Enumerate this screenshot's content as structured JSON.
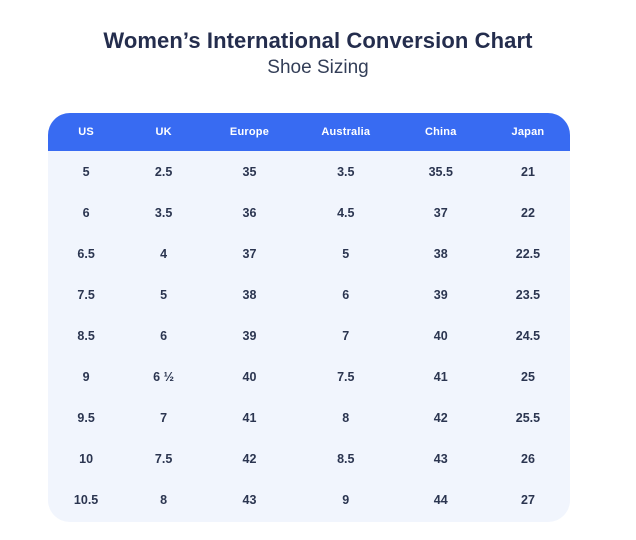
{
  "title": {
    "text": "Women’s International Conversion Chart",
    "subtitle": "Shoe Sizing"
  },
  "colors": {
    "header_background": "#386bf2",
    "header_text": "#ffffff",
    "body_background": "#f1f5fd",
    "cell_text": "#2b3550",
    "title_text": "#242d4d",
    "page_background": "#ffffff"
  },
  "table": {
    "columns": [
      "US",
      "UK",
      "Europe",
      "Australia",
      "China",
      "Japan"
    ],
    "rows": [
      [
        "5",
        "2.5",
        "35",
        "3.5",
        "35.5",
        "21"
      ],
      [
        "6",
        "3.5",
        "36",
        "4.5",
        "37",
        "22"
      ],
      [
        "6.5",
        "4",
        "37",
        "5",
        "38",
        "22.5"
      ],
      [
        "7.5",
        "5",
        "38",
        "6",
        "39",
        "23.5"
      ],
      [
        "8.5",
        "6",
        "39",
        "7",
        "40",
        "24.5"
      ],
      [
        "9",
        "6 ½",
        "40",
        "7.5",
        "41",
        "25"
      ],
      [
        "9.5",
        "7",
        "41",
        "8",
        "42",
        "25.5"
      ],
      [
        "10",
        "7.5",
        "42",
        "8.5",
        "43",
        "26"
      ],
      [
        "10.5",
        "8",
        "43",
        "9",
        "44",
        "27"
      ]
    ]
  },
  "chart_data": {
    "type": "table",
    "title": "Women’s International Conversion Chart",
    "subtitle": "Shoe Sizing",
    "columns": [
      "US",
      "UK",
      "Europe",
      "Australia",
      "China",
      "Japan"
    ],
    "rows": [
      [
        "5",
        "2.5",
        "35",
        "3.5",
        "35.5",
        "21"
      ],
      [
        "6",
        "3.5",
        "36",
        "4.5",
        "37",
        "22"
      ],
      [
        "6.5",
        "4",
        "37",
        "5",
        "38",
        "22.5"
      ],
      [
        "7.5",
        "5",
        "38",
        "6",
        "39",
        "23.5"
      ],
      [
        "8.5",
        "6",
        "39",
        "7",
        "40",
        "24.5"
      ],
      [
        "9",
        "6 ½",
        "40",
        "7.5",
        "41",
        "25"
      ],
      [
        "9.5",
        "7",
        "41",
        "8",
        "42",
        "25.5"
      ],
      [
        "10",
        "7.5",
        "42",
        "8.5",
        "43",
        "26"
      ],
      [
        "10.5",
        "8",
        "43",
        "9",
        "44",
        "27"
      ]
    ],
    "layout_hints": {
      "header_style": "solid blue bar, white bold labels",
      "body_style": "light blue rounded card, no row separators"
    }
  }
}
